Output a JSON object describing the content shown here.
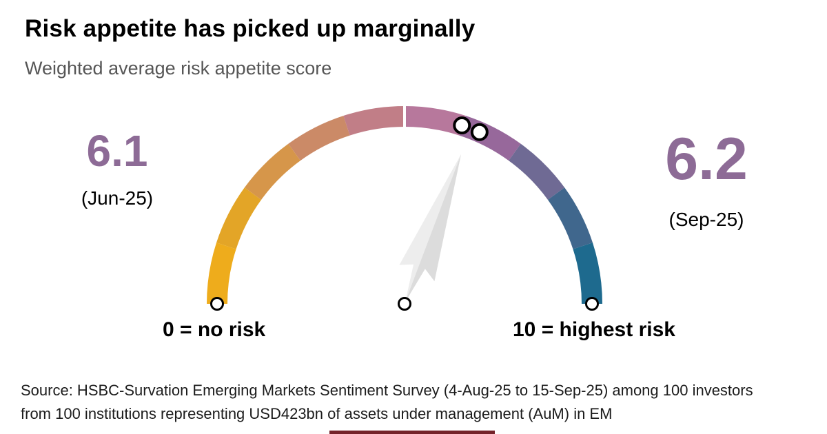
{
  "header": {
    "title": "Risk appetite has picked up marginally",
    "subtitle": "Weighted average risk appetite score"
  },
  "gauge": {
    "left": {
      "value": "6.1",
      "period": "(Jun-25)"
    },
    "right": {
      "value": "6.2",
      "period": "(Sep-25)"
    },
    "min_label": "0 = no risk",
    "max_label": "10 = highest risk",
    "min": 0,
    "max": 10,
    "value_color": "#8d6b96",
    "needle_value": 6.15,
    "needle_colors": {
      "light": "#ededed",
      "dark": "#dcdcdc"
    },
    "marker_values": [
      6.1,
      6.2
    ],
    "segment_colors": [
      "#eeac1c",
      "#e3a527",
      "#d6964a",
      "#cb8a67",
      "#c17e87",
      "#b7789c",
      "#97689b",
      "#6f6a94",
      "#40678d",
      "#1e6a8e"
    ],
    "tick_value": 5
  },
  "source": {
    "line1": "Source: HSBC-Survation Emerging Markets Sentiment Survey (4-Aug-25 to 15-Sep-25) among 100 investors",
    "line2": "from 100 institutions representing USD423bn of assets under management (AuM) in EM"
  },
  "footer_bar": {
    "color": "#74232a"
  },
  "chart_data": {
    "type": "gauge",
    "title": "Risk appetite has picked up marginally",
    "subtitle": "Weighted average risk appetite score",
    "axis": {
      "min": 0,
      "max": 10,
      "min_label": "0 = no risk",
      "max_label": "10 = highest risk",
      "grid": false
    },
    "series": [
      {
        "name": "Jun-25",
        "value": 6.1
      },
      {
        "name": "Sep-25",
        "value": 6.2
      }
    ],
    "annotations": [
      "6.1 (Jun-25)",
      "6.2 (Sep-25)"
    ],
    "legend_position": "none",
    "color_scale": [
      "#eeac1c",
      "#e3a527",
      "#d6964a",
      "#cb8a67",
      "#c17e87",
      "#b7789c",
      "#97689b",
      "#6f6a94",
      "#40678d",
      "#1e6a8e"
    ],
    "source": "Source: HSBC-Survation Emerging Markets Sentiment Survey (4-Aug-25 to 15-Sep-25) among 100 investors from 100 institutions representing USD423bn of assets under management (AuM) in EM"
  }
}
